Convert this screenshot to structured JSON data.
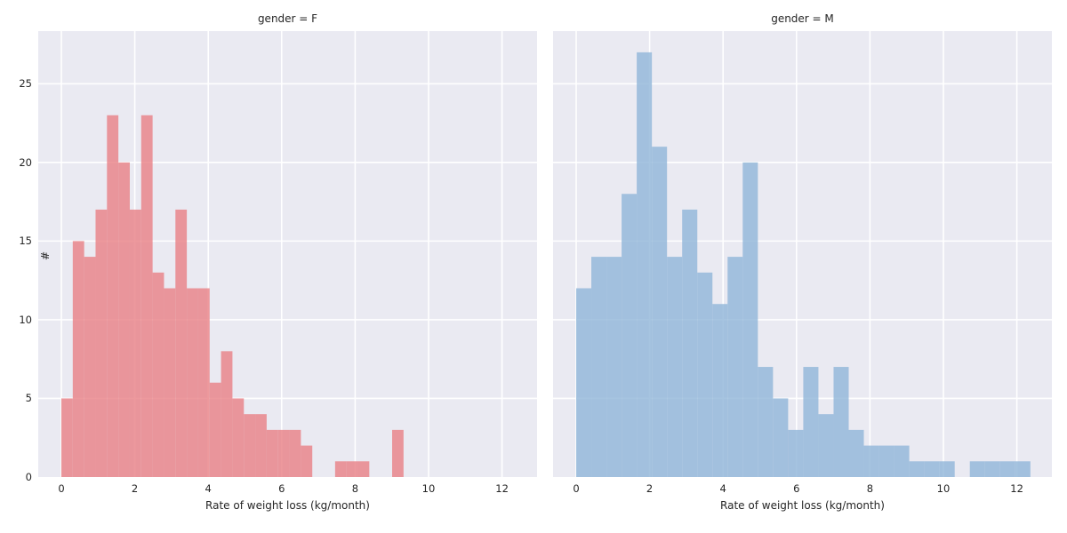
{
  "figure": {
    "background": "#ffffff",
    "panel_background": "#eaeaf2",
    "grid_color": "#ffffff",
    "text_color": "#262626"
  },
  "xlabel": "Rate of weight loss (kg/month)",
  "ylabel": "#",
  "chart_data": [
    {
      "type": "bar",
      "subtype": "histogram",
      "facet_title": "gender = F",
      "color": "#e98287",
      "fill_opacity": 0.82,
      "displayed_bar_color": "#ea959b",
      "bin_start": 0,
      "bin_width": 0.3106,
      "counts": [
        5,
        15,
        14,
        17,
        23,
        20,
        17,
        23,
        13,
        12,
        17,
        12,
        12,
        6,
        8,
        5,
        4,
        4,
        3,
        3,
        3,
        2,
        0,
        0,
        1,
        1,
        1,
        0,
        0,
        3
      ],
      "xticks": [
        0,
        2,
        4,
        6,
        8,
        10,
        12
      ],
      "yticks": [
        0,
        5,
        10,
        15,
        20,
        25
      ],
      "xlim": [
        -0.63,
        12.97
      ],
      "ylim": [
        0,
        28.35
      ],
      "grid": true,
      "show_ytick_labels": true
    },
    {
      "type": "bar",
      "subtype": "histogram",
      "facet_title": "gender = M",
      "color": "#93b7d9",
      "fill_opacity": 0.82,
      "displayed_bar_color": "#a4c1de",
      "bin_start": 0,
      "bin_width": 0.4123,
      "counts": [
        12,
        14,
        14,
        18,
        27,
        21,
        14,
        17,
        13,
        11,
        14,
        20,
        7,
        5,
        3,
        7,
        4,
        7,
        3,
        2,
        2,
        2,
        1,
        1,
        1,
        0,
        1,
        1,
        1,
        1
      ],
      "xticks": [
        0,
        2,
        4,
        6,
        8,
        10,
        12
      ],
      "yticks": [
        0,
        5,
        10,
        15,
        20,
        25
      ],
      "xlim": [
        -0.63,
        12.97
      ],
      "ylim": [
        0,
        28.35
      ],
      "grid": true,
      "show_ytick_labels": false
    }
  ]
}
